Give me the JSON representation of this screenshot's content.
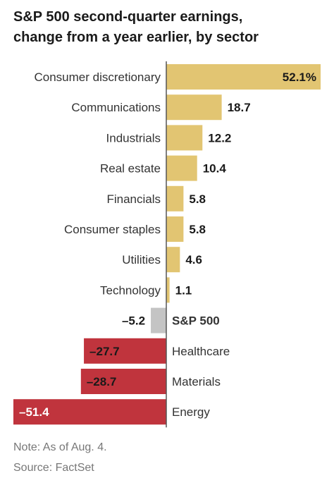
{
  "header": {
    "title_line1": "S&P 500 second-quarter earnings,",
    "title_line2": "change from a year earlier, by sector"
  },
  "footer": {
    "note": "Note: As of Aug. 4.",
    "source": "Source: FactSet"
  },
  "colors": {
    "positive": "#e2c572",
    "negative": "#c0343d",
    "index": "#c4c4c4",
    "zero_line": "#555555"
  },
  "chart_data": {
    "type": "bar",
    "orientation": "horizontal",
    "title": "S&P 500 second-quarter earnings, change from a year earlier, by sector",
    "categories": [
      "Consumer discretionary",
      "Communications",
      "Industrials",
      "Real estate",
      "Financials",
      "Consumer staples",
      "Utilities",
      "Technology",
      "S&P 500",
      "Healthcare",
      "Materials",
      "Energy"
    ],
    "values": [
      52.1,
      18.7,
      12.2,
      10.4,
      5.8,
      5.8,
      4.6,
      1.1,
      -5.2,
      -27.7,
      -28.7,
      -51.4
    ],
    "value_labels": [
      "52.1%",
      "18.7",
      "12.2",
      "10.4",
      "5.8",
      "5.8",
      "4.6",
      "1.1",
      "–5.2",
      "–27.7",
      "–28.7",
      "–51.4"
    ],
    "highlight": "S&P 500",
    "unit": "%",
    "xlim": [
      -51.4,
      52.1
    ],
    "grid": false
  }
}
